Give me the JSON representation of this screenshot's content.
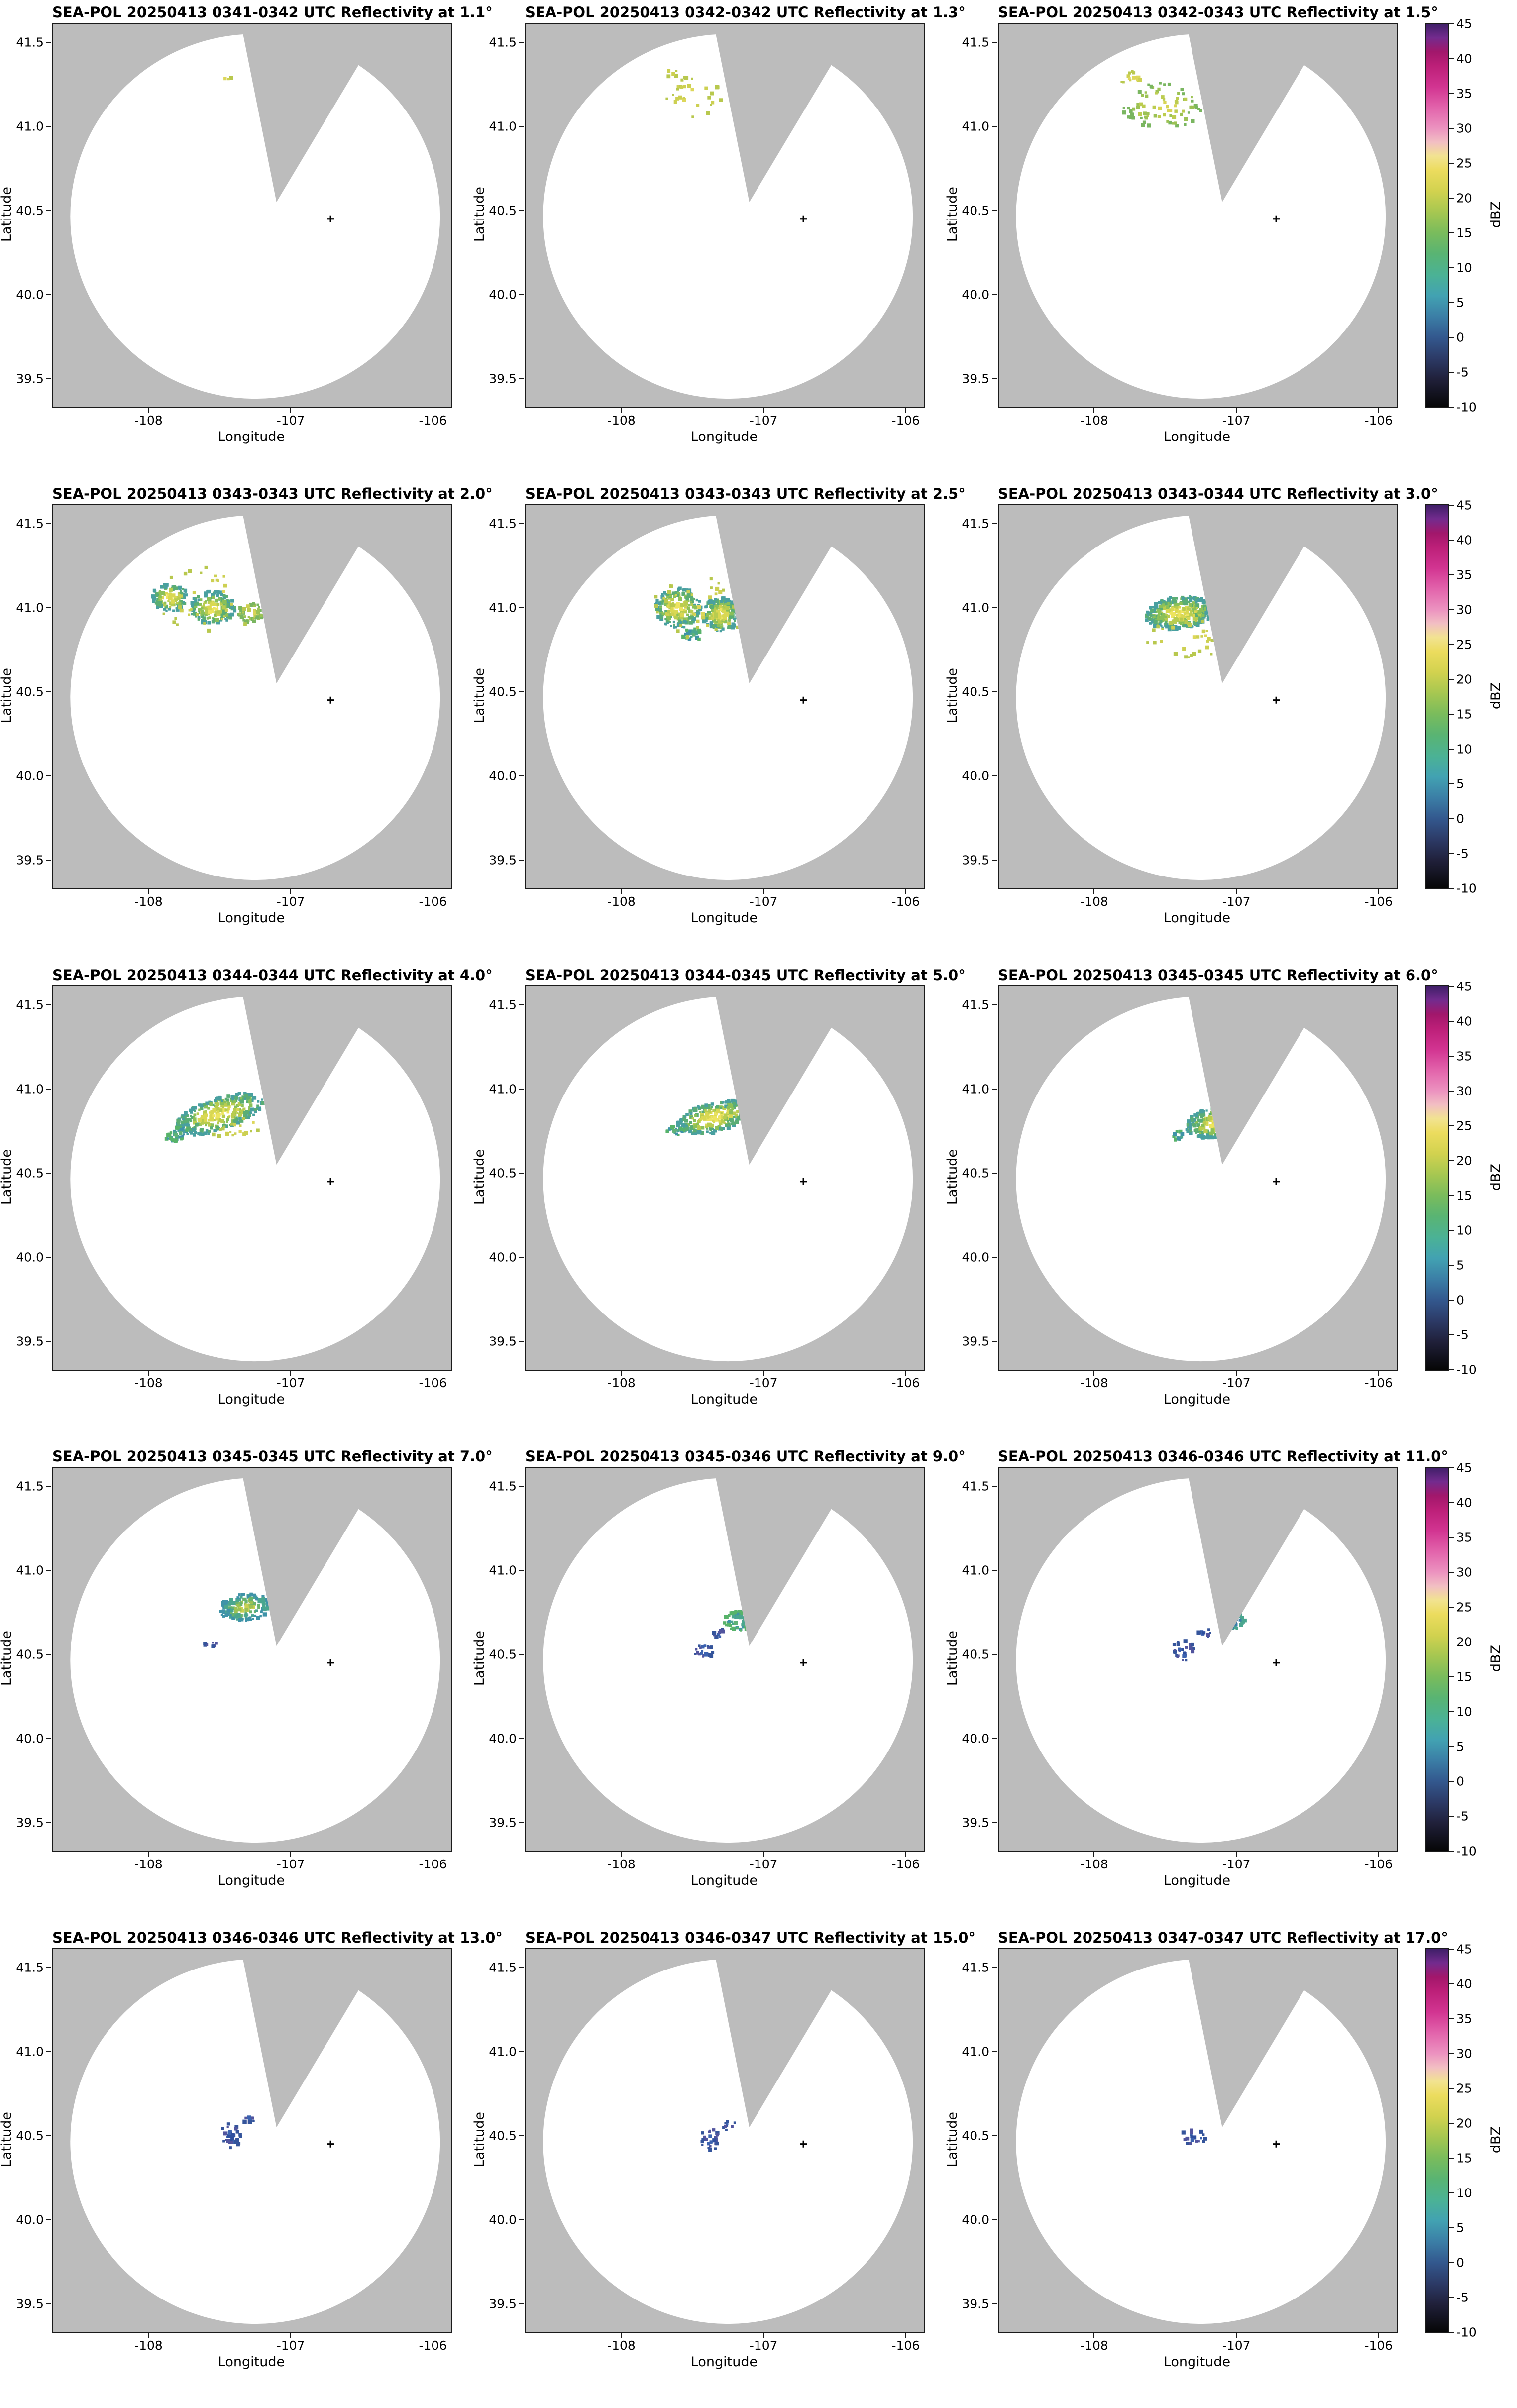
{
  "axes": {
    "xlabel": "Longitude",
    "ylabel": "Latitude",
    "xlim": [
      -108.67,
      -105.87
    ],
    "ylim": [
      39.33,
      41.61
    ],
    "xticks": [
      {
        "v": -108,
        "t": "-108"
      },
      {
        "v": -107,
        "t": "-107"
      },
      {
        "v": -106,
        "t": "-106"
      }
    ],
    "yticks": [
      {
        "v": 39.5,
        "t": "39.5"
      },
      {
        "v": 40.0,
        "t": "40.0"
      },
      {
        "v": 40.5,
        "t": "40.5"
      },
      {
        "v": 41.0,
        "t": "41.0"
      },
      {
        "v": 41.5,
        "t": "41.5"
      }
    ]
  },
  "radar": {
    "circle_center": [
      -107.25,
      40.465
    ],
    "circle_radius_deg": [
      1.3,
      1.085
    ],
    "wedge_apex": [
      -107.1,
      40.55
    ],
    "wedge_top_lons": [
      -107.35,
      -106.35
    ],
    "site_marker": [
      -106.72,
      40.45
    ]
  },
  "colors": {
    "outside_gray": "#bcbcbc",
    "scan_white": "#ffffff",
    "axis_ink": "#1a1a1a"
  },
  "colorbar": {
    "label": "dBZ",
    "vmin": -10,
    "vmax": 45,
    "ticks": [
      {
        "v": 45,
        "t": "45"
      },
      {
        "v": 40,
        "t": "40"
      },
      {
        "v": 35,
        "t": "35"
      },
      {
        "v": 30,
        "t": "30"
      },
      {
        "v": 25,
        "t": "25"
      },
      {
        "v": 20,
        "t": "20"
      },
      {
        "v": 15,
        "t": "15"
      },
      {
        "v": 10,
        "t": "10"
      },
      {
        "v": 5,
        "t": "5"
      },
      {
        "v": 0,
        "t": "0"
      },
      {
        "v": -5,
        "t": "-5"
      },
      {
        "v": -10,
        "t": "-10"
      }
    ],
    "stops": [
      {
        "v": -10,
        "c": "#060606"
      },
      {
        "v": -6,
        "c": "#20203a"
      },
      {
        "v": -3,
        "c": "#2c3a66"
      },
      {
        "v": 0,
        "c": "#33588e"
      },
      {
        "v": 3,
        "c": "#3b7ea6"
      },
      {
        "v": 6,
        "c": "#42a2b2"
      },
      {
        "v": 9,
        "c": "#4bb295"
      },
      {
        "v": 12,
        "c": "#59b473"
      },
      {
        "v": 15,
        "c": "#7abc5c"
      },
      {
        "v": 18,
        "c": "#a6c751"
      },
      {
        "v": 21,
        "c": "#d2d24f"
      },
      {
        "v": 24,
        "c": "#ecdc5e"
      },
      {
        "v": 26,
        "c": "#f2e391"
      },
      {
        "v": 28,
        "c": "#f2bfc3"
      },
      {
        "v": 30,
        "c": "#ec93c0"
      },
      {
        "v": 33,
        "c": "#e263ab"
      },
      {
        "v": 36,
        "c": "#d23491"
      },
      {
        "v": 39,
        "c": "#bc1f78"
      },
      {
        "v": 41,
        "c": "#a2176b"
      },
      {
        "v": 43,
        "c": "#732b8e"
      },
      {
        "v": 45,
        "c": "#3f1f68"
      }
    ]
  },
  "chart_data": {
    "type": "scatter",
    "description": "SEA-POL radar PPI reflectivity scans, 15 elevation angles; echo clusters given as [lon_center, lat_center, lon_radius_deg, lat_radius_deg, tilt_deg, n_points, palette]",
    "palettes": {
      "warm": [
        "#ede45f",
        "#d9d852",
        "#b8cc4f",
        "#8bc058",
        "#5aad74",
        "#49a0a0"
      ],
      "yellow": [
        "#ddd75a",
        "#cdd052",
        "#b8c84e"
      ],
      "yellowgreen": [
        "#d8d455",
        "#bccc50",
        "#9cc254",
        "#7ab660"
      ],
      "cool": [
        "#5fb277",
        "#4aa68f",
        "#3f93a8",
        "#57b36a"
      ],
      "cool2": [
        "#3f93a8",
        "#3a7fa8",
        "#4aa68f"
      ],
      "coolwarm": [
        "#c9d052",
        "#9cc254",
        "#6ab36e",
        "#4aa68f",
        "#3f93a8"
      ],
      "blue": [
        "#2e4f9e",
        "#3b62b0",
        "#51549e",
        "#34549b"
      ]
    },
    "panels": [
      {
        "title": "SEA-POL 20250413 0341-0342 UTC Reflectivity at 1.1°",
        "elevation_deg": 1.1,
        "clusters": [
          [
            -107.45,
            41.28,
            0.04,
            0.02,
            0,
            3,
            "yellow"
          ]
        ]
      },
      {
        "title": "SEA-POL 20250413 0342-0342 UTC Reflectivity at 1.3°",
        "elevation_deg": 1.3,
        "clusters": [
          [
            -107.5,
            41.18,
            0.22,
            0.13,
            0,
            30,
            "yellow"
          ],
          [
            -107.65,
            41.32,
            0.05,
            0.03,
            0,
            5,
            "yellow"
          ]
        ]
      },
      {
        "title": "SEA-POL 20250413 0342-0343 UTC Reflectivity at 1.5°",
        "elevation_deg": 1.5,
        "clusters": [
          [
            -107.52,
            41.12,
            0.28,
            0.14,
            0,
            80,
            "yellowgreen"
          ],
          [
            -107.72,
            41.28,
            0.1,
            0.05,
            0,
            15,
            "yellow"
          ]
        ]
      },
      {
        "title": "SEA-POL 20250413 0343-0343 UTC Reflectivity at 2.0°",
        "elevation_deg": 2.0,
        "clusters": [
          [
            -107.85,
            41.06,
            0.13,
            0.08,
            0,
            110,
            "warm"
          ],
          [
            -107.55,
            41.0,
            0.16,
            0.1,
            0,
            160,
            "warm"
          ],
          [
            -107.28,
            40.97,
            0.09,
            0.06,
            0,
            45,
            "yellowgreen"
          ],
          [
            -107.55,
            41.05,
            0.4,
            0.2,
            0,
            40,
            "yellow"
          ]
        ]
      },
      {
        "title": "SEA-POL 20250413 0343-0343 UTC Reflectivity at 2.5°",
        "elevation_deg": 2.5,
        "clusters": [
          [
            -107.6,
            41.0,
            0.16,
            0.12,
            0,
            190,
            "warm"
          ],
          [
            -107.3,
            40.96,
            0.13,
            0.1,
            0,
            170,
            "warm"
          ],
          [
            -107.5,
            40.84,
            0.07,
            0.04,
            0,
            25,
            "cool"
          ],
          [
            -107.45,
            41.0,
            0.35,
            0.18,
            0,
            45,
            "yellow"
          ]
        ]
      },
      {
        "title": "SEA-POL 20250413 0343-0344 UTC Reflectivity at 3.0°",
        "elevation_deg": 3.0,
        "clusters": [
          [
            -107.4,
            40.97,
            0.24,
            0.1,
            5,
            300,
            "warm"
          ],
          [
            -107.05,
            40.93,
            0.1,
            0.07,
            0,
            90,
            "warm"
          ],
          [
            -107.35,
            40.82,
            0.3,
            0.12,
            0,
            35,
            "yellow"
          ]
        ]
      },
      {
        "title": "SEA-POL 20250413 0344-0344 UTC Reflectivity at 4.0°",
        "elevation_deg": 4.0,
        "clusters": [
          [
            -107.5,
            40.85,
            0.32,
            0.1,
            14,
            330,
            "warm"
          ],
          [
            -107.8,
            40.73,
            0.08,
            0.04,
            20,
            40,
            "cool"
          ],
          [
            -107.3,
            40.78,
            0.25,
            0.06,
            12,
            25,
            "yellow"
          ]
        ]
      },
      {
        "title": "SEA-POL 20250413 0344-0345 UTC Reflectivity at 5.0°",
        "elevation_deg": 5.0,
        "clusters": [
          [
            -107.35,
            40.83,
            0.27,
            0.09,
            10,
            300,
            "warm"
          ],
          [
            -107.62,
            40.75,
            0.06,
            0.03,
            0,
            20,
            "cool"
          ]
        ]
      },
      {
        "title": "SEA-POL 20250413 0345-0345 UTC Reflectivity at 6.0°",
        "elevation_deg": 6.0,
        "clusters": [
          [
            -107.15,
            40.8,
            0.21,
            0.09,
            8,
            260,
            "warm"
          ],
          [
            -107.4,
            40.72,
            0.05,
            0.03,
            0,
            12,
            "cool"
          ]
        ]
      },
      {
        "title": "SEA-POL 20250413 0345-0345 UTC Reflectivity at 7.0°",
        "elevation_deg": 7.0,
        "clusters": [
          [
            -107.32,
            40.78,
            0.18,
            0.08,
            5,
            170,
            "coolwarm"
          ],
          [
            -107.55,
            40.56,
            0.06,
            0.015,
            0,
            8,
            "blue"
          ]
        ]
      },
      {
        "title": "SEA-POL 20250413 0345-0346 UTC Reflectivity at 9.0°",
        "elevation_deg": 9.0,
        "clusters": [
          [
            -107.17,
            40.7,
            0.11,
            0.06,
            0,
            80,
            "cool"
          ],
          [
            -107.42,
            40.52,
            0.07,
            0.05,
            0,
            22,
            "blue"
          ],
          [
            -107.3,
            40.62,
            0.05,
            0.03,
            0,
            10,
            "blue"
          ]
        ]
      },
      {
        "title": "SEA-POL 20250413 0346-0346 UTC Reflectivity at 11.0°",
        "elevation_deg": 11.0,
        "clusters": [
          [
            -107.02,
            40.7,
            0.08,
            0.05,
            0,
            55,
            "cool2"
          ],
          [
            -107.37,
            40.52,
            0.08,
            0.07,
            0,
            28,
            "blue"
          ],
          [
            -107.22,
            40.63,
            0.05,
            0.03,
            0,
            10,
            "blue"
          ]
        ]
      },
      {
        "title": "SEA-POL 20250413 0346-0346 UTC Reflectivity at 13.0°",
        "elevation_deg": 13.0,
        "clusters": [
          [
            -107.42,
            40.5,
            0.07,
            0.08,
            0,
            32,
            "blue"
          ],
          [
            -107.3,
            40.6,
            0.05,
            0.03,
            0,
            10,
            "blue"
          ]
        ]
      },
      {
        "title": "SEA-POL 20250413 0346-0347 UTC Reflectivity at 15.0°",
        "elevation_deg": 15.0,
        "clusters": [
          [
            -107.37,
            40.48,
            0.07,
            0.07,
            0,
            28,
            "blue"
          ],
          [
            -107.24,
            40.56,
            0.05,
            0.03,
            0,
            9,
            "blue"
          ]
        ]
      },
      {
        "title": "SEA-POL 20250413 0347-0347 UTC Reflectivity at 17.0°",
        "elevation_deg": 17.0,
        "clusters": [
          [
            -107.3,
            40.49,
            0.09,
            0.05,
            0,
            20,
            "blue"
          ]
        ]
      }
    ]
  }
}
